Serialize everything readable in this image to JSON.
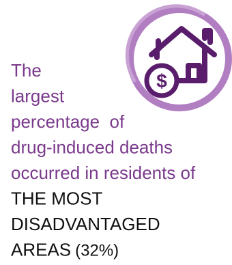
{
  "text": {
    "lines": [
      "The",
      "largest",
      "percentage  of",
      "drug-induced deaths",
      "occurred in residents of"
    ],
    "highlight_lines": [
      "THE MOST",
      "DISADVANTAGED",
      "AREAS"
    ],
    "percent": "(32%)"
  }
}
